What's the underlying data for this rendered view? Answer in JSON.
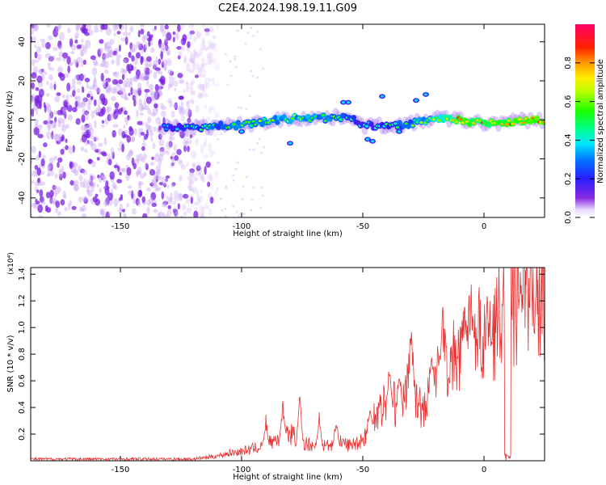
{
  "title": "C2E4.2024.198.19.11.G09",
  "chart_data": [
    {
      "type": "heatmap",
      "xlabel": "Height of straight line (km)",
      "ylabel": "Frequency (Hz)",
      "xlim": [
        -187,
        25
      ],
      "ylim": [
        -50,
        49
      ],
      "xticks": [
        -150,
        -100,
        -50,
        0
      ],
      "yticks": [
        -40,
        -20,
        0,
        20,
        40
      ],
      "grid": false,
      "colorbar": {
        "label": "Normalized spectral amplitude",
        "range": [
          0.0,
          1.0
        ],
        "ticks": [
          0.0,
          0.2,
          0.4,
          0.6,
          0.8
        ],
        "colormap": "rainbow (purple-blue-cyan-green-yellow-red-magenta)"
      },
      "noise_region_km": [
        -187,
        -110
      ],
      "signal_band": [
        {
          "x": -132,
          "freq": -4,
          "amp": 0.35
        },
        {
          "x": -120,
          "freq": -4,
          "amp": 0.55
        },
        {
          "x": -105,
          "freq": -3,
          "amp": 0.6
        },
        {
          "x": -95,
          "freq": -2,
          "amp": 0.6
        },
        {
          "x": -85,
          "freq": 0,
          "amp": 0.65
        },
        {
          "x": -75,
          "freq": 1,
          "amp": 0.65
        },
        {
          "x": -65,
          "freq": 1,
          "amp": 0.6
        },
        {
          "x": -55,
          "freq": 2,
          "amp": 0.55
        },
        {
          "x": -50,
          "freq": -3,
          "amp": 0.45
        },
        {
          "x": -40,
          "freq": -3,
          "amp": 0.5
        },
        {
          "x": -30,
          "freq": -2,
          "amp": 0.6
        },
        {
          "x": -20,
          "freq": 1,
          "amp": 0.7
        },
        {
          "x": -10,
          "freq": 0,
          "amp": 0.85
        },
        {
          "x": 0,
          "freq": -2,
          "amp": 0.85
        },
        {
          "x": 10,
          "freq": -1,
          "amp": 0.85
        },
        {
          "x": 20,
          "freq": 0,
          "amp": 0.9
        }
      ]
    },
    {
      "type": "line",
      "xlabel": "Height of straight line (km)",
      "ylabel": "SNR (10 * v/v)",
      "y_multiplier": "(x10⁴)",
      "xlim": [
        -187,
        25
      ],
      "ylim": [
        0,
        1.45
      ],
      "xticks": [
        -150,
        -100,
        -50,
        0
      ],
      "yticks": [
        0.2,
        0.4,
        0.6,
        0.8,
        1.0,
        1.2,
        1.4
      ],
      "grid": false,
      "series": [
        {
          "color": "#e83030",
          "x": [
            -187,
            -180,
            -170,
            -160,
            -150,
            -140,
            -130,
            -120,
            -115,
            -110,
            -105,
            -100,
            -95,
            -90,
            -85,
            -80,
            -75,
            -70,
            -65,
            -60,
            -55,
            -50,
            -45,
            -40,
            -35,
            -30,
            -25,
            -20,
            -15,
            -10,
            -5,
            0,
            5,
            10,
            15,
            20,
            25
          ],
          "y": [
            0.01,
            0.01,
            0.01,
            0.01,
            0.01,
            0.01,
            0.01,
            0.01,
            0.02,
            0.03,
            0.05,
            0.06,
            0.08,
            0.1,
            0.15,
            0.18,
            0.12,
            0.1,
            0.1,
            0.12,
            0.1,
            0.14,
            0.3,
            0.4,
            0.35,
            0.55,
            0.3,
            0.6,
            0.65,
            0.7,
            0.85,
            0.8,
            0.9,
            1.0,
            1.05,
            1.0,
            1.1
          ],
          "peaks": [
            {
              "x": -90,
              "y": 0.35
            },
            {
              "x": -83,
              "y": 0.5
            },
            {
              "x": -76,
              "y": 0.52
            },
            {
              "x": -68,
              "y": 0.38
            },
            {
              "x": -61,
              "y": 0.34
            },
            {
              "x": -47,
              "y": 0.42
            },
            {
              "x": -39,
              "y": 0.78
            },
            {
              "x": -35,
              "y": 0.68
            },
            {
              "x": -30,
              "y": 1.18
            },
            {
              "x": -22,
              "y": 0.75
            },
            {
              "x": -17,
              "y": 1.22
            },
            {
              "x": -8,
              "y": 1.32
            },
            {
              "x": -5,
              "y": 1.25
            },
            {
              "x": 2,
              "y": 1.15
            },
            {
              "x": 9,
              "y": 1.45
            },
            {
              "x": 15,
              "y": 1.35
            },
            {
              "x": 21,
              "y": 1.3
            }
          ]
        }
      ]
    }
  ]
}
